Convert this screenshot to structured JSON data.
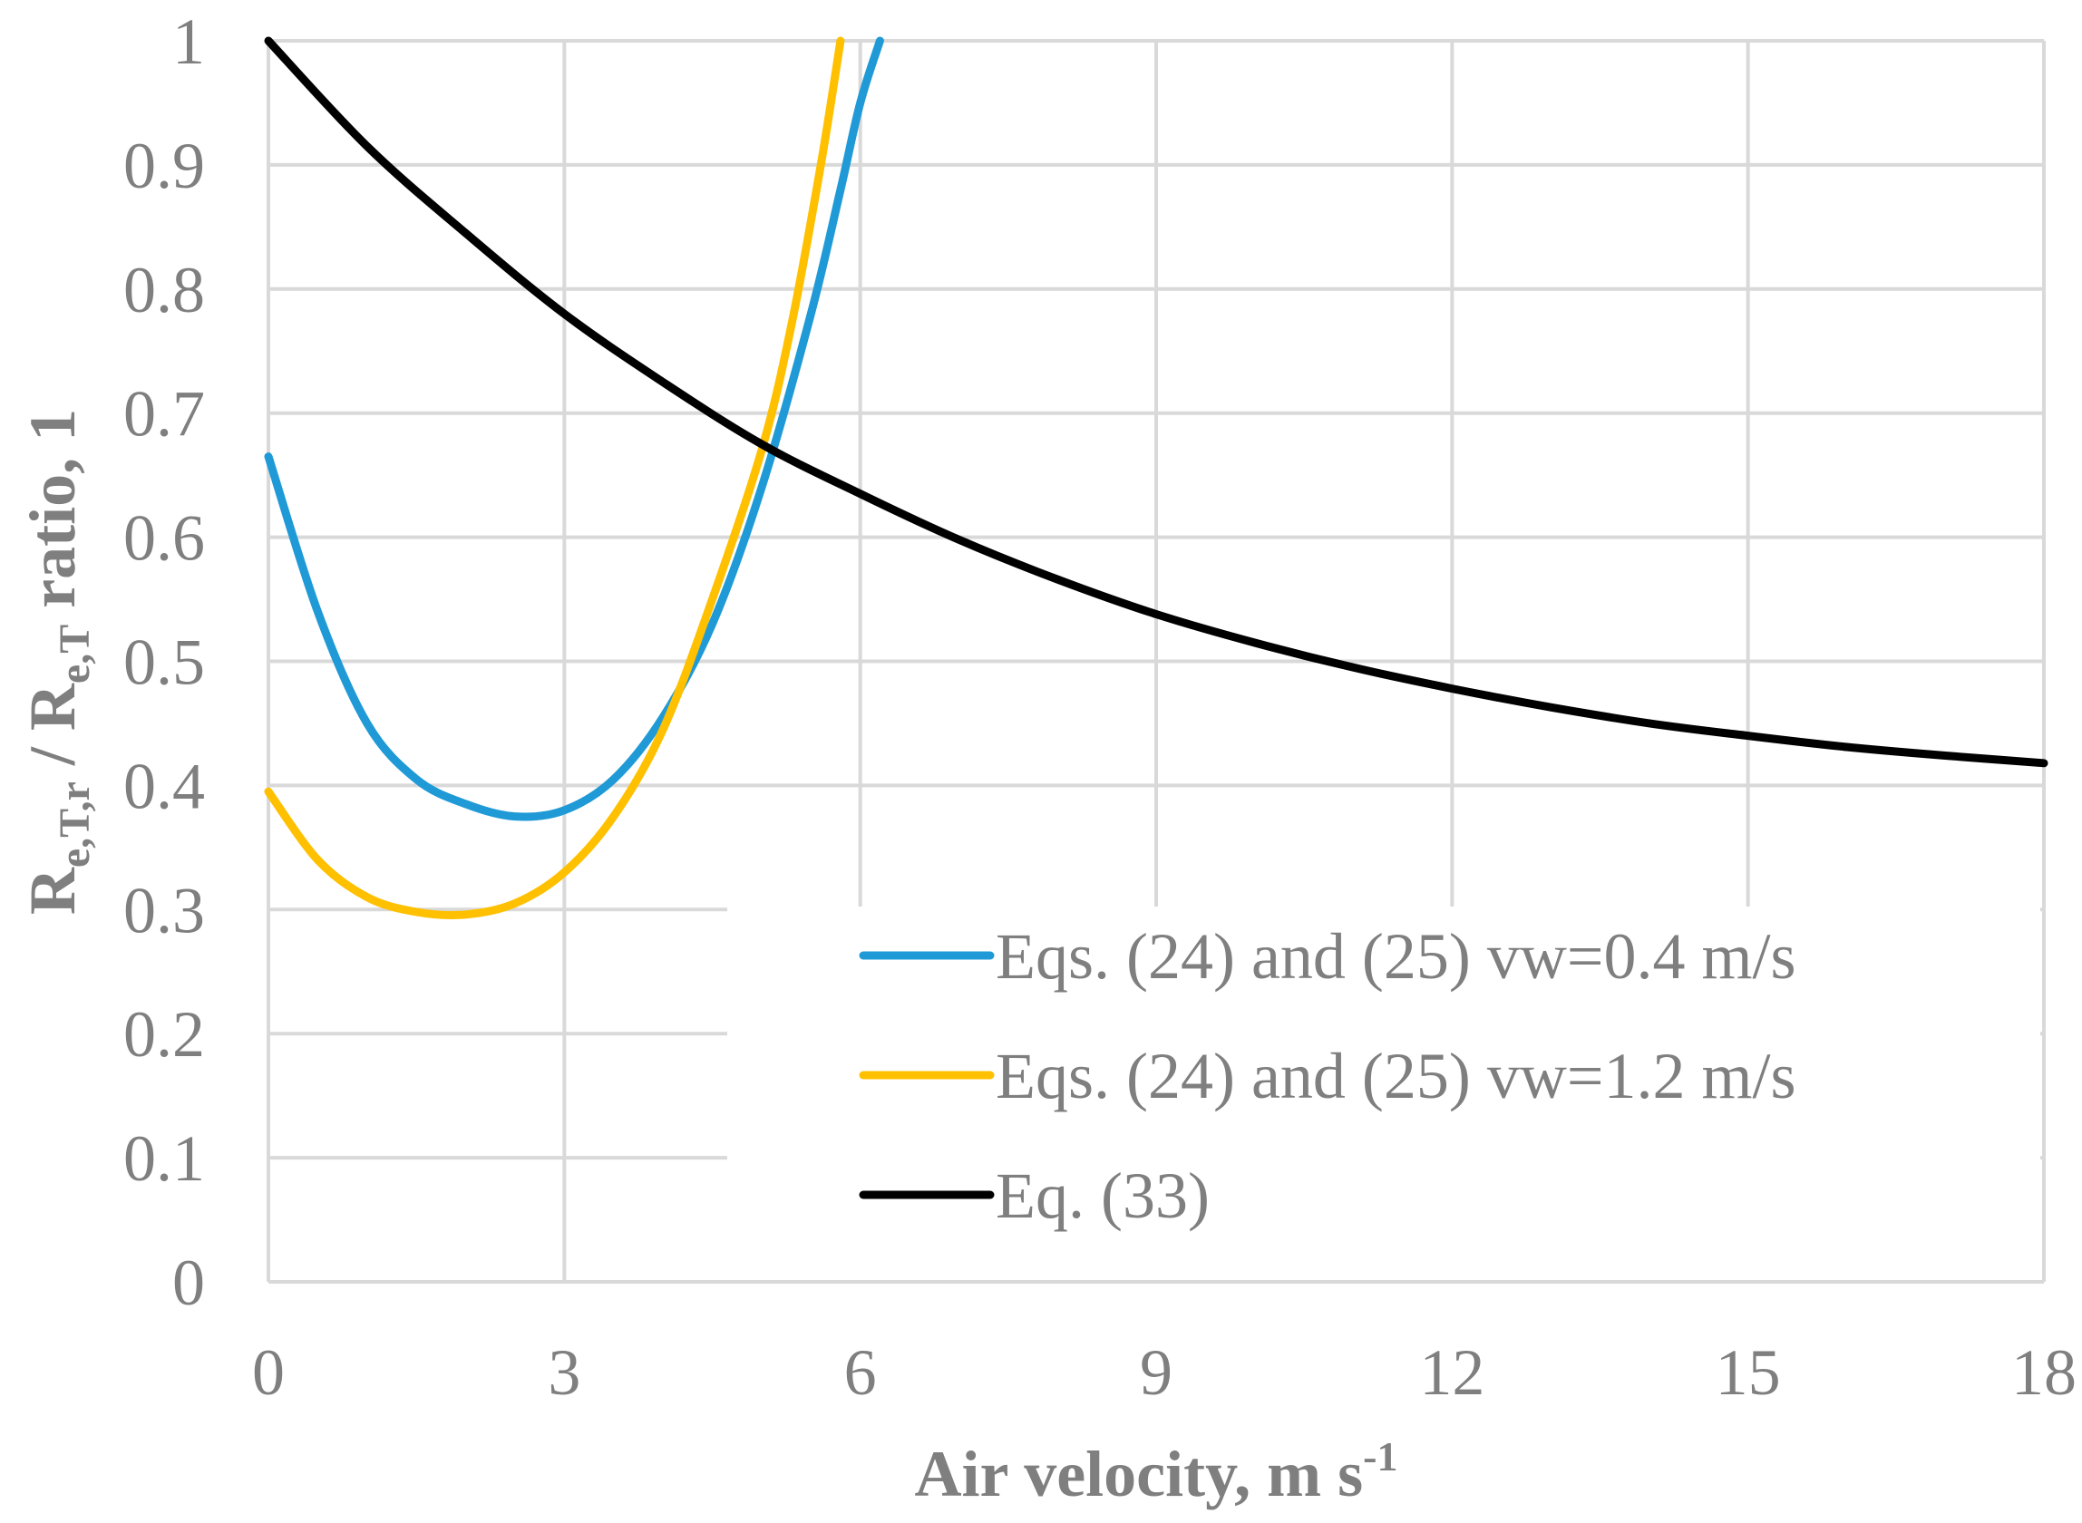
{
  "chart_data": {
    "type": "line",
    "title": "",
    "xlabel": "Air velocity,  m s",
    "xlabel_sup": "-1",
    "ylabel_parts": [
      {
        "text": "R",
        "sub": false
      },
      {
        "text": "e,T,r",
        "sub": true
      },
      {
        "text": " / R",
        "sub": false
      },
      {
        "text": "e,T",
        "sub": true
      },
      {
        "text": " ratio, 1",
        "sub": false
      }
    ],
    "xlim": [
      0,
      18
    ],
    "ylim": [
      0,
      1
    ],
    "xticks": [
      0,
      3,
      6,
      9,
      12,
      15,
      18
    ],
    "yticks": [
      0,
      0.1,
      0.2,
      0.3,
      0.4,
      0.5,
      0.6,
      0.7,
      0.8,
      0.9,
      1
    ],
    "xtick_labels": [
      "0",
      "3",
      "6",
      "9",
      "12",
      "15",
      "18"
    ],
    "ytick_labels": [
      "0",
      "0.1",
      "0.2",
      "0.3",
      "0.4",
      "0.5",
      "0.6",
      "0.7",
      "0.8",
      "0.9",
      "1"
    ],
    "grid": true,
    "legend_position": "bottom-right",
    "series": [
      {
        "name": "Eqs. (24) and (25) vw=0.4 m/s",
        "color": "#1f9ad6",
        "x": [
          0,
          0.5,
          1.0,
          1.5,
          2.0,
          2.5,
          3.0,
          3.5,
          4.0,
          4.5,
          5.0,
          5.5,
          5.8,
          6.0,
          6.2
        ],
        "y": [
          0.665,
          0.54,
          0.45,
          0.405,
          0.385,
          0.375,
          0.38,
          0.405,
          0.455,
          0.53,
          0.64,
          0.78,
          0.88,
          0.95,
          1.0
        ]
      },
      {
        "name": "Eqs. (24) and (25) vw=1.2 m/s",
        "color": "#ffc000",
        "x": [
          0,
          0.5,
          1.0,
          1.5,
          2.0,
          2.5,
          3.0,
          3.5,
          4.0,
          4.5,
          5.0,
          5.3,
          5.6,
          5.8
        ],
        "y": [
          0.395,
          0.34,
          0.31,
          0.298,
          0.296,
          0.305,
          0.33,
          0.375,
          0.445,
          0.55,
          0.67,
          0.77,
          0.9,
          1.0
        ]
      },
      {
        "name": "Eq. (33)",
        "color": "#000000",
        "x": [
          0,
          1,
          2,
          3,
          4,
          5,
          6,
          7,
          8,
          9,
          10,
          11,
          12,
          13,
          14,
          15,
          16,
          17,
          18
        ],
        "y": [
          1.0,
          0.915,
          0.845,
          0.78,
          0.725,
          0.675,
          0.635,
          0.598,
          0.566,
          0.538,
          0.515,
          0.495,
          0.478,
          0.463,
          0.45,
          0.44,
          0.431,
          0.424,
          0.418
        ]
      }
    ]
  }
}
